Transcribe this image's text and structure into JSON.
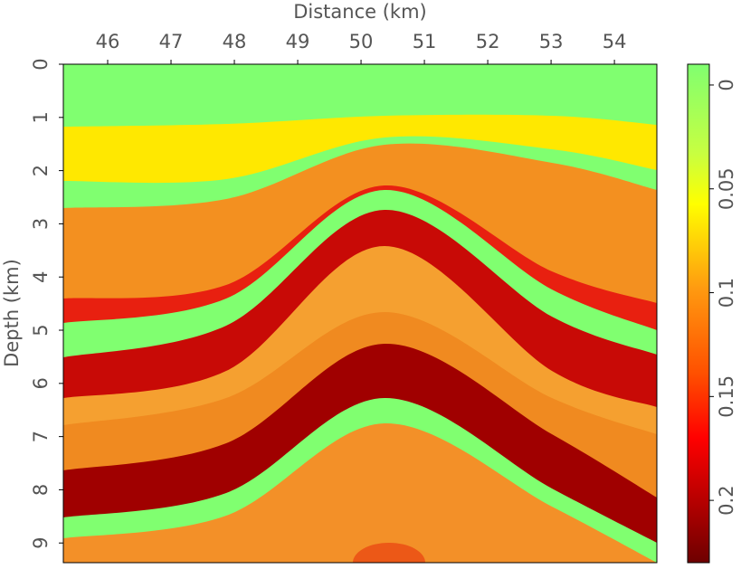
{
  "chart_data": {
    "type": "heatmap",
    "xlabel": "Distance (km)",
    "ylabel": "Depth (km)",
    "xlim": [
      45.3,
      54.67
    ],
    "xticks": [
      46,
      47,
      48,
      49,
      50,
      51,
      52,
      53,
      54
    ],
    "ylim": [
      0,
      9.37
    ],
    "yticks": [
      0,
      1,
      2,
      3,
      4,
      5,
      6,
      7,
      8,
      9
    ],
    "yreverse": true,
    "colorbar": {
      "clim": [
        -0.01,
        0.23
      ],
      "ticks": [
        0,
        0.05,
        0.1,
        0.15,
        0.2
      ]
    }
  }
}
